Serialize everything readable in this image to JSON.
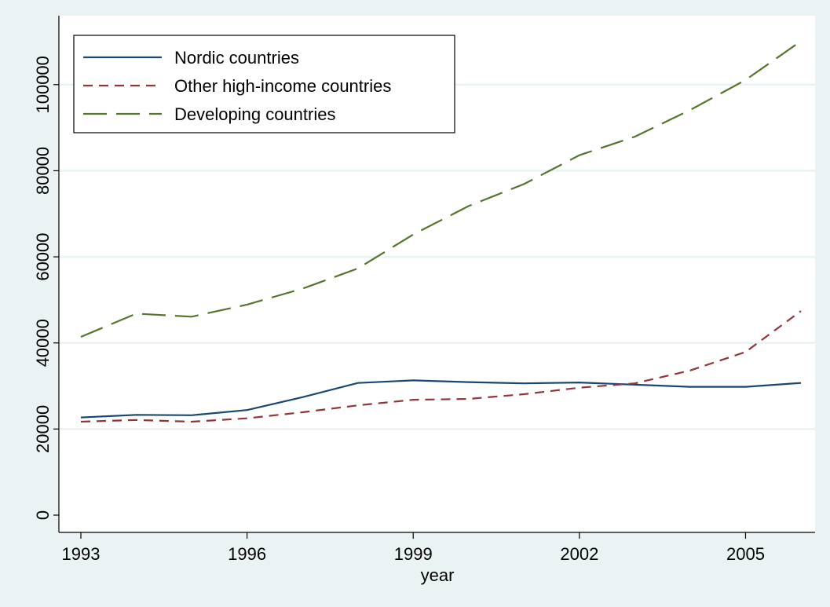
{
  "chart_data": {
    "type": "line",
    "xlabel": "year",
    "ylabel": "",
    "xlim": [
      1993,
      2006
    ],
    "ylim": [
      0,
      112000
    ],
    "x_ticks": [
      1993,
      1996,
      1999,
      2002,
      2005
    ],
    "y_ticks": [
      0,
      20000,
      40000,
      60000,
      80000,
      100000
    ],
    "grid": true,
    "legend_position": "top-left",
    "x": [
      1993,
      1994,
      1995,
      1996,
      1997,
      1998,
      1999,
      2000,
      2001,
      2002,
      2003,
      2004,
      2005,
      2006
    ],
    "series": [
      {
        "name": "Nordic countries",
        "color": "#1a476f",
        "dash": "solid",
        "values": [
          22700,
          23300,
          23200,
          24400,
          27400,
          30700,
          31300,
          30900,
          30600,
          30800,
          30300,
          29800,
          29800,
          30700
        ]
      },
      {
        "name": "Other high-income countries",
        "color": "#90353b",
        "dash": "short-dash",
        "values": [
          21700,
          22100,
          21700,
          22500,
          23900,
          25500,
          26800,
          27000,
          28100,
          29600,
          30600,
          33600,
          37900,
          47400
        ]
      },
      {
        "name": "Developing countries",
        "color": "#55752f",
        "dash": "long-dash",
        "values": [
          41400,
          46800,
          46100,
          48900,
          52600,
          57300,
          65200,
          71800,
          76900,
          83600,
          87900,
          94100,
          101100,
          110100
        ]
      }
    ]
  }
}
